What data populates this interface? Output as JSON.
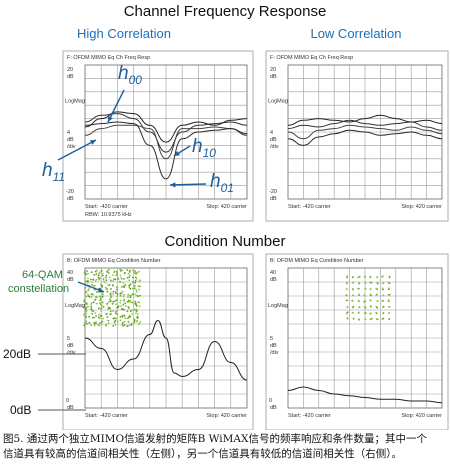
{
  "figure": {
    "title": "Channel Frequency Response",
    "section2_title": "Condition Number",
    "caption_line1": "图5. 通过两个独立MIMO信道发射的矩阵B WiMAX信号的频率响应和条件数量；其中一个",
    "caption_line2": "信道具有较高的信道间相关性（左侧），另一个信道具有较低的信道间相关性（右侧）。"
  },
  "panels": [
    {
      "heading": "High Correlation",
      "header_text": "F: OFDM MIMO Eq Ch Freq Resp",
      "y_label1": "LogMag",
      "y_ticks_top": [
        "20",
        "dB"
      ],
      "y_ticks_mid": [
        "4",
        "dB",
        "/div"
      ],
      "y_ticks_bottom": [
        "-20",
        "dB"
      ],
      "start_label": "Start: -420 carrier",
      "stop_label": "Stop: 420 carrier",
      "rbw_label": "RBW: 10.9375 kHz",
      "annotations": {
        "h00": "h00",
        "h10": "h10",
        "h11": "h11",
        "h01": "h01"
      }
    },
    {
      "heading": "Low Correlation",
      "header_text": "F: OFDM MIMO Eq Ch Freq Resp",
      "y_label1": "LogMag",
      "y_ticks_top": [
        "20",
        "dB"
      ],
      "y_ticks_mid": [
        "4",
        "dB",
        "/div"
      ],
      "y_ticks_bottom": [
        "-20",
        "dB"
      ],
      "start_label": "Start: -420 carrier",
      "stop_label": "Stop: 420 carrier"
    },
    {
      "header_text": "B: OFDM MIMO Eq Condition Number",
      "y_label1": "LogMag",
      "y_ticks_top": [
        "40",
        "dB"
      ],
      "y_ticks_mid": [
        "5",
        "dB",
        "/div"
      ],
      "y_ticks_bottom": [
        "0",
        "dB"
      ],
      "start_label": "Start: -420 carrier",
      "stop_label": "Stop: 420 carrier",
      "left_label_top": "20dB",
      "left_label_bottom": "0dB",
      "constellation_label": [
        "64-QAM",
        "constellation"
      ]
    },
    {
      "header_text": "B: OFDM MIMO Eq Condition Number",
      "y_label1": "LogMag",
      "y_ticks_top": [
        "40",
        "dB"
      ],
      "y_ticks_mid": [
        "5",
        "dB",
        "/div"
      ],
      "y_ticks_bottom": [
        "0",
        "dB"
      ],
      "start_label": "Start: -420 carrier",
      "stop_label": "Stop: 420 carrier"
    }
  ],
  "chart_data": [
    {
      "type": "line",
      "x": [
        -420,
        -336,
        -252,
        -168,
        -84,
        0,
        84,
        168,
        252,
        336,
        420
      ],
      "ylim": [
        -20,
        20
      ],
      "series": [
        {
          "name": "h00",
          "values": [
            1.5,
            4,
            6,
            5.5,
            2,
            -3,
            2,
            3,
            2,
            3.5,
            4
          ]
        },
        {
          "name": "h10",
          "values": [
            3,
            5,
            5.5,
            4,
            0,
            -6,
            0,
            2,
            2.5,
            3,
            2
          ]
        },
        {
          "name": "h11",
          "values": [
            -1,
            1,
            2,
            2,
            1,
            -8,
            1,
            1,
            1.5,
            1,
            -1
          ]
        },
        {
          "name": "h01",
          "values": [
            2,
            2.5,
            3,
            2.5,
            -4,
            -14,
            -2,
            0,
            0.5,
            1,
            -0.5
          ]
        }
      ]
    },
    {
      "type": "line",
      "x": [
        -420,
        -336,
        -252,
        -168,
        -84,
        0,
        84,
        168,
        252,
        336,
        420
      ],
      "ylim": [
        -20,
        20
      ],
      "series": [
        {
          "name": "",
          "values": [
            2,
            3.5,
            4,
            3.5,
            3,
            4,
            5,
            4,
            3,
            3.5,
            2.5
          ]
        },
        {
          "name": "",
          "values": [
            1,
            2,
            1.5,
            2.5,
            3.5,
            2.5,
            2,
            2.5,
            3,
            1.5,
            0.5
          ]
        },
        {
          "name": "",
          "values": [
            0,
            -2,
            0.5,
            1,
            2,
            1.5,
            1,
            0.5,
            1.5,
            0.5,
            -0.5
          ]
        },
        {
          "name": "",
          "values": [
            -2,
            -4,
            -1.5,
            -0.5,
            0.5,
            0,
            -1,
            -0.5,
            0,
            -1,
            -2
          ]
        }
      ]
    },
    {
      "type": "line",
      "x": [
        -420,
        -336,
        -252,
        -168,
        -84,
        -42,
        0,
        42,
        84,
        168,
        252,
        336,
        420
      ],
      "ylim": [
        0,
        40
      ],
      "series": [
        {
          "name": "",
          "values": [
            20,
            17,
            11,
            14,
            21,
            25,
            20,
            10,
            9,
            11,
            19,
            13,
            8
          ]
        }
      ]
    },
    {
      "type": "line",
      "x": [
        -420,
        -336,
        -252,
        -168,
        -84,
        0,
        84,
        168,
        252,
        336,
        420
      ],
      "ylim": [
        0,
        40
      ],
      "series": [
        {
          "name": "",
          "values": [
            5,
            6,
            5,
            4,
            3.5,
            3,
            2.5,
            2.5,
            2,
            2,
            1.5
          ]
        }
      ]
    }
  ]
}
